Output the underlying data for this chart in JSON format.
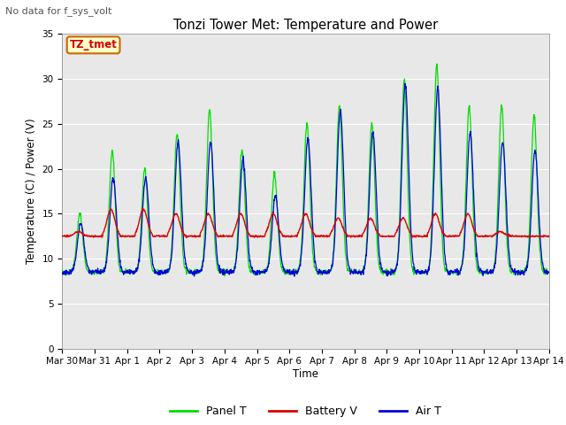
{
  "title": "Tonzi Tower Met: Temperature and Power",
  "subtitle": "No data for f_sys_volt",
  "ylabel": "Temperature (C) / Power (V)",
  "xlabel": "Time",
  "ylim": [
    0,
    35
  ],
  "yticks": [
    0,
    5,
    10,
    15,
    20,
    25,
    30,
    35
  ],
  "n_days": 15,
  "x_tick_labels": [
    "Mar 30",
    "Mar 31",
    "Apr 1",
    "Apr 2",
    "Apr 3",
    "Apr 4",
    "Apr 5",
    "Apr 6",
    "Apr 7",
    "Apr 8",
    "Apr 9",
    "Apr 10",
    "Apr 11",
    "Apr 12",
    "Apr 13",
    "Apr 14"
  ],
  "legend_entries": [
    "Panel T",
    "Battery V",
    "Air T"
  ],
  "panel_color": "#00dd00",
  "battery_color": "#dd0000",
  "air_color": "#0000dd",
  "bg_color": "#e8e8e8",
  "annotation_text": "TZ_tmet",
  "annotation_bg": "#ffffcc",
  "annotation_border": "#cc6600",
  "panel_peaks": [
    15,
    22,
    20,
    24,
    26.5,
    22,
    19.5,
    25,
    27,
    25,
    30,
    31.5,
    27,
    27,
    26
  ],
  "air_peaks": [
    14,
    19,
    19,
    23,
    23,
    21,
    17,
    23.5,
    26.5,
    24,
    29.5,
    29,
    24,
    23,
    22
  ],
  "night_base": 8.5,
  "batt_base": 12.5,
  "batt_peaks": [
    13,
    15.5,
    15.5,
    15,
    15,
    15,
    15,
    15,
    14.5,
    14.5,
    14.5,
    15,
    15,
    13,
    12.5
  ]
}
